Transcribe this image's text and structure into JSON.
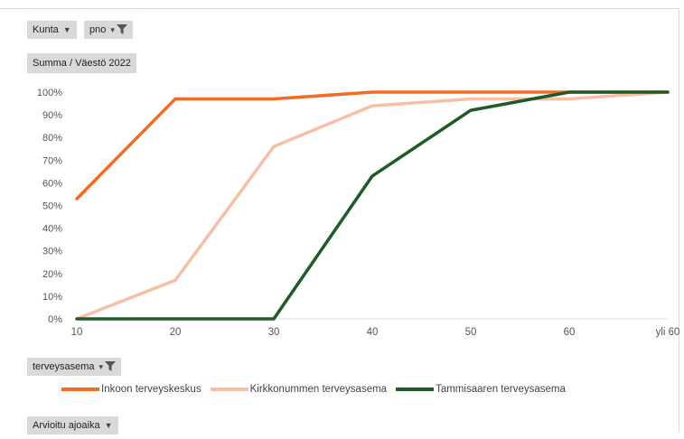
{
  "filters": {
    "kunta_label": "Kunta",
    "pno_label": "pno",
    "terveysasema_label": "terveysasema",
    "arvioitu_label": "Arvioitu ajoaika"
  },
  "value_label": "Summa / Väestö 2022",
  "colors": {
    "inkoo": "#f36c21",
    "kirkkonummi": "#f7bfa3",
    "tammisaari": "#1e5b26"
  },
  "chart_data": {
    "type": "line",
    "categories": [
      "10",
      "20",
      "30",
      "40",
      "50",
      "60",
      "yli 60"
    ],
    "y_ticks": [
      "0%",
      "10%",
      "20%",
      "30%",
      "40%",
      "50%",
      "60%",
      "70%",
      "80%",
      "90%",
      "100%"
    ],
    "ylim": [
      0,
      1
    ],
    "grid": false,
    "legend_position": "bottom",
    "series": [
      {
        "name": "Inkoon terveyskeskus",
        "color_key": "inkoo",
        "values": [
          0.53,
          0.97,
          0.97,
          1.0,
          1.0,
          1.0,
          1.0
        ]
      },
      {
        "name": "Kirkkonummen terveysasema",
        "color_key": "kirkkonummi",
        "values": [
          0.0,
          0.17,
          0.76,
          0.94,
          0.97,
          0.97,
          1.0
        ]
      },
      {
        "name": "Tammisaaren terveysasema",
        "color_key": "tammisaari",
        "values": [
          0.0,
          0.0,
          0.0,
          0.63,
          0.92,
          1.0,
          1.0
        ]
      }
    ]
  }
}
